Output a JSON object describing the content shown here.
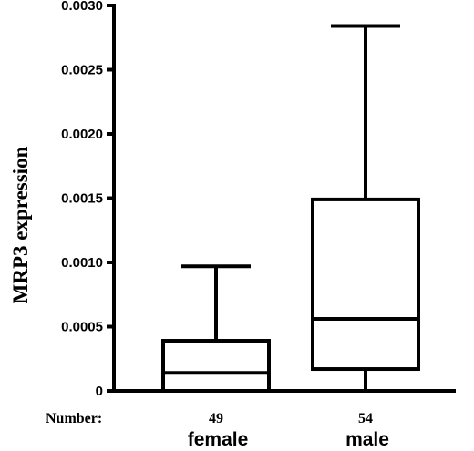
{
  "chart_data": {
    "type": "box",
    "ylabel": "MRP3 expression",
    "ylim": [
      0,
      0.003
    ],
    "yticks": [
      "0",
      "0.0005",
      "0.0010",
      "0.0015",
      "0.0020",
      "0.0025",
      "0.0030"
    ],
    "ytick_values": [
      0,
      0.0005,
      0.001,
      0.0015,
      0.002,
      0.0025,
      0.003
    ],
    "number_label": "Number:",
    "groups": [
      {
        "name": "female",
        "n": "49",
        "whisker_low": 0,
        "q1": 0,
        "median": 0.00014,
        "q3": 0.00039,
        "whisker_high": 0.00097
      },
      {
        "name": "male",
        "n": "54",
        "whisker_low": 0,
        "q1": 0.00017,
        "median": 0.00056,
        "q3": 0.00149,
        "whisker_high": 0.00284
      }
    ],
    "grid": false,
    "legend": "none"
  }
}
